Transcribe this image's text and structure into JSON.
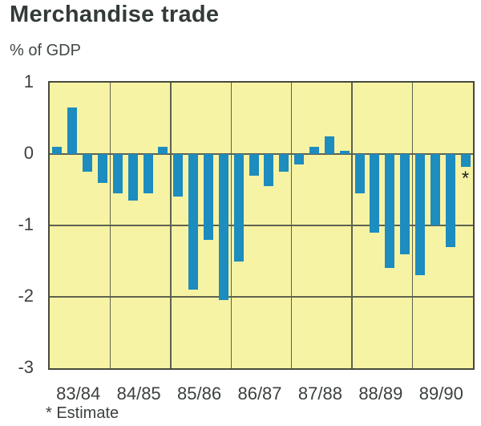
{
  "title": "Merchandise trade",
  "ylabel": "% of GDP",
  "footnote": "* Estimate",
  "chart_data": {
    "type": "bar",
    "title": "Merchandise trade",
    "ylabel": "% of GDP",
    "xlabel": "",
    "ylim": [
      -3,
      1
    ],
    "yticks": [
      1,
      0,
      -1,
      -2,
      -3
    ],
    "grid": "both",
    "legend": "none",
    "categories": [
      "83/84",
      "84/85",
      "85/86",
      "86/87",
      "87/88",
      "88/89",
      "89/90"
    ],
    "groups": [
      {
        "category": "83/84",
        "values": [
          0.1,
          0.65,
          -0.25,
          -0.4
        ]
      },
      {
        "category": "84/85",
        "values": [
          -0.55,
          -0.65,
          -0.55,
          0.1
        ]
      },
      {
        "category": "85/86",
        "values": [
          -0.6,
          -1.9,
          -1.2,
          -2.05
        ]
      },
      {
        "category": "86/87",
        "values": [
          -1.5,
          -0.3,
          -0.45,
          -0.25
        ]
      },
      {
        "category": "87/88",
        "values": [
          -0.15,
          0.1,
          0.25,
          0.05
        ]
      },
      {
        "category": "88/89",
        "values": [
          -0.55,
          -1.1,
          -1.6,
          -1.4
        ]
      },
      {
        "category": "89/90",
        "values": [
          -1.7,
          -1.0,
          -1.3,
          -0.18
        ]
      }
    ],
    "estimate": {
      "category": "89/90",
      "value_index": 3,
      "marker": "*"
    },
    "colors": {
      "bar": "#1d8cbe",
      "plot_background": "#f7f3a4",
      "gridline": "#5f6150",
      "border": "#474a3d",
      "text": "#3b403e"
    }
  }
}
